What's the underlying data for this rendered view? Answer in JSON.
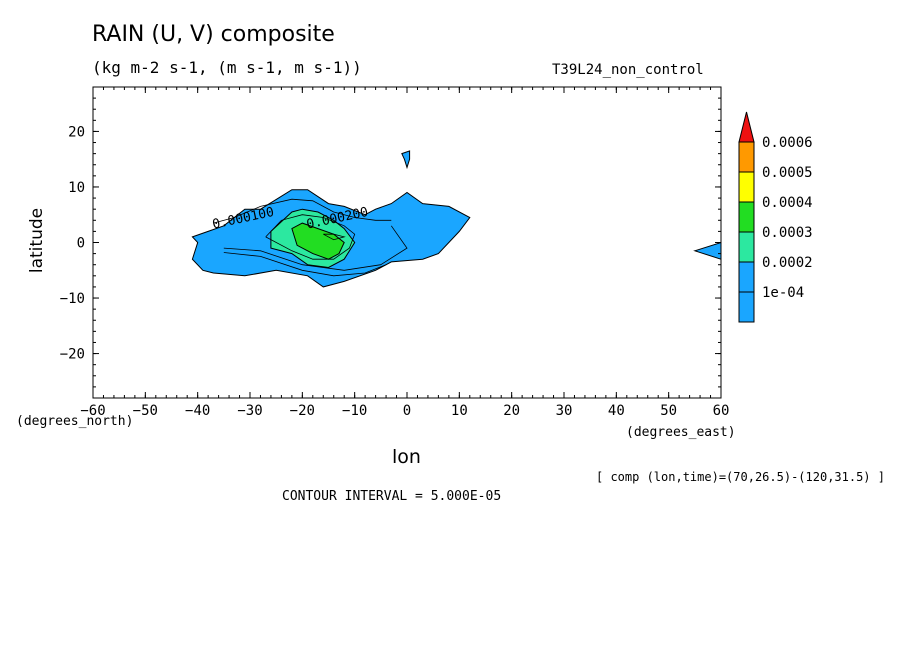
{
  "chart_data": {
    "type": "contour-filled",
    "title": "RAIN (U, V) composite",
    "subtitle": "(kg m-2 s-1, (m s-1, m s-1))",
    "run_name": "T39L24_non_control",
    "xlabel": "lon",
    "ylabel": "latitude",
    "x_units": "(degrees_east)",
    "y_units": "(degrees_north)",
    "xlim": [
      -60,
      60
    ],
    "ylim": [
      -28,
      28
    ],
    "x_ticks": [
      -60,
      -50,
      -40,
      -30,
      -20,
      -10,
      0,
      10,
      20,
      30,
      40,
      50,
      60
    ],
    "y_ticks": [
      -20,
      -10,
      0,
      10,
      20
    ],
    "contour_interval": "CONTOUR INTERVAL = 5.000E-05",
    "footnote": "[ comp (lon,time)=(70,26.5)-(120,31.5) ]",
    "contour_labels": [
      {
        "text": "0.000100",
        "lon": -37,
        "lat": 2.5
      },
      {
        "text": "0.000200",
        "lon": -19,
        "lat": 2.5
      }
    ],
    "legend": {
      "levels": [
        {
          "label": "1e-04",
          "color": "#1aa6ff"
        },
        {
          "label": "0.0002",
          "color": "#1aa6ff"
        },
        {
          "label": "0.0003",
          "color": "#2ce8a0"
        },
        {
          "label": "0.0004",
          "color": "#22dd22"
        },
        {
          "label": "0.0005",
          "color": "#ffff00"
        },
        {
          "label": "0.0006",
          "color": "#ff9900"
        }
      ],
      "cap_color": "#ee1111",
      "label_level_index": [
        0,
        1,
        2,
        3,
        4,
        5
      ]
    },
    "regions": [
      {
        "level": 1,
        "color": "#1aa6ff",
        "points": [
          [
            -41,
            1
          ],
          [
            -38,
            2
          ],
          [
            -35,
            3
          ],
          [
            -31,
            6
          ],
          [
            -28,
            6
          ],
          [
            -22,
            9.5
          ],
          [
            -19,
            9.5
          ],
          [
            -15,
            7
          ],
          [
            -12,
            6.5
          ],
          [
            -8,
            5
          ],
          [
            -6,
            6
          ],
          [
            -3,
            7
          ],
          [
            0,
            9
          ],
          [
            3,
            7
          ],
          [
            8,
            6.5
          ],
          [
            12,
            4.5
          ],
          [
            10,
            2
          ],
          [
            6,
            -2
          ],
          [
            3,
            -3
          ],
          [
            -3,
            -3.5
          ],
          [
            -6,
            -5
          ],
          [
            -12,
            -7
          ],
          [
            -16,
            -8
          ],
          [
            -19,
            -6
          ],
          [
            -25,
            -5
          ],
          [
            -31,
            -6
          ],
          [
            -37,
            -5.5
          ],
          [
            -39,
            -5
          ],
          [
            -41,
            -3
          ],
          [
            -40,
            0
          ]
        ]
      },
      {
        "level": 1,
        "color": "#1aa6ff",
        "points": [
          [
            -1,
            16
          ],
          [
            0.5,
            16.5
          ],
          [
            0.5,
            15
          ],
          [
            0,
            13.5
          ],
          [
            -0.5,
            15
          ]
        ]
      },
      {
        "level": 1,
        "color": "#1aa6ff",
        "points": [
          [
            55,
            -1.5
          ],
          [
            60,
            0
          ],
          [
            60,
            -3
          ]
        ]
      },
      {
        "level": 3,
        "color": "#2ce8a0",
        "points": [
          [
            -26,
            2
          ],
          [
            -22,
            5.5
          ],
          [
            -20,
            6
          ],
          [
            -17,
            5.5
          ],
          [
            -14,
            4
          ],
          [
            -12,
            2.5
          ],
          [
            -10,
            0
          ],
          [
            -12,
            -3
          ],
          [
            -15,
            -4.5
          ],
          [
            -19,
            -4
          ],
          [
            -22,
            -2
          ],
          [
            -26,
            -1
          ]
        ]
      },
      {
        "level": 4,
        "color": "#22dd22",
        "points": [
          [
            -22,
            2.5
          ],
          [
            -20,
            3.5
          ],
          [
            -17,
            2.5
          ],
          [
            -14,
            1.5
          ],
          [
            -12,
            0
          ],
          [
            -13,
            -2
          ],
          [
            -15,
            -3
          ],
          [
            -18,
            -2
          ],
          [
            -21,
            -0.5
          ]
        ]
      }
    ],
    "contour_lines": [
      [
        [
          -37,
          3.5
        ],
        [
          -33,
          4.5
        ],
        [
          -28,
          6.5
        ],
        [
          -22,
          7.8
        ],
        [
          -18,
          7.5
        ],
        [
          -14,
          5.5
        ],
        [
          -10,
          4.5
        ],
        [
          -6,
          4
        ],
        [
          -3,
          4
        ]
      ],
      [
        [
          -35,
          -1
        ],
        [
          -28,
          -1.5
        ],
        [
          -20,
          -4
        ],
        [
          -12,
          -5
        ],
        [
          -5,
          -4
        ],
        [
          0,
          -1
        ],
        [
          -3,
          3
        ]
      ],
      [
        [
          -35,
          -1.8
        ],
        [
          -28,
          -2.5
        ],
        [
          -20,
          -5
        ],
        [
          -14,
          -6
        ],
        [
          -8,
          -5.5
        ],
        [
          -4,
          -4
        ]
      ],
      [
        [
          -27,
          1
        ],
        [
          -24,
          4
        ],
        [
          -20,
          5
        ],
        [
          -16,
          4.5
        ],
        [
          -12,
          3
        ],
        [
          -10,
          1.5
        ],
        [
          -11,
          -1
        ],
        [
          -14,
          -3
        ],
        [
          -18,
          -3
        ],
        [
          -22,
          -1.5
        ],
        [
          -27,
          1
        ]
      ],
      [
        [
          -16,
          1.5
        ],
        [
          -14,
          1.5
        ],
        [
          -12,
          1
        ],
        [
          -14,
          0.5
        ],
        [
          -16,
          1.5
        ]
      ]
    ]
  }
}
